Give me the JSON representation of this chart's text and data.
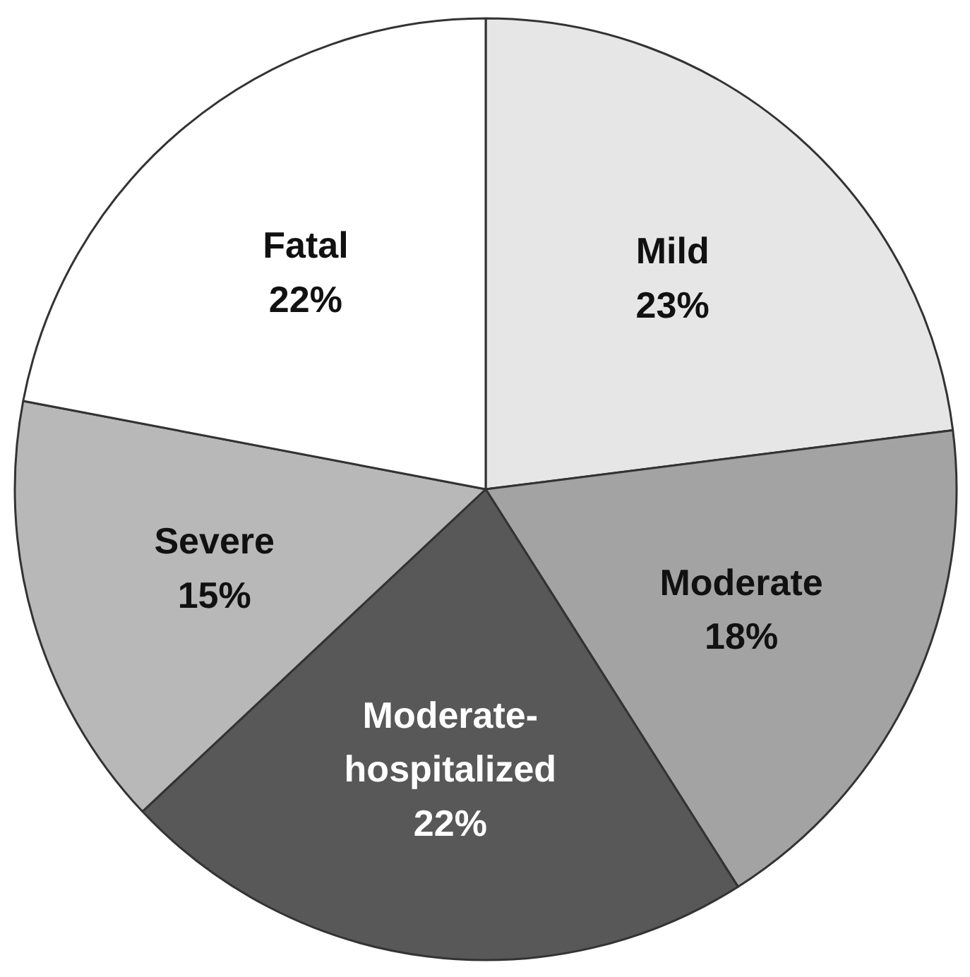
{
  "chart_data": {
    "type": "pie",
    "categories": [
      "Mild",
      "Moderate",
      "Moderate-hospitalized",
      "Severe",
      "Fatal"
    ],
    "values": [
      23,
      18,
      22,
      15,
      22
    ],
    "value_labels": [
      "23%",
      "18%",
      "22%",
      "15%",
      "22%"
    ],
    "colors": [
      "#e6e6e6",
      "#a3a3a3",
      "#585858",
      "#b8b8b8",
      "#ffffff"
    ],
    "legend": false
  }
}
